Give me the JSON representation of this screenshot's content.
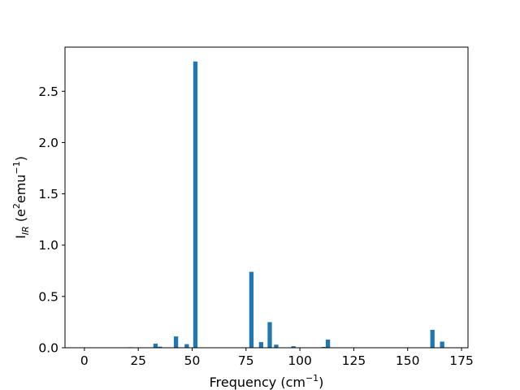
{
  "chart_data": {
    "type": "bar",
    "title": "",
    "xlabel": {
      "base": "Frequency (cm",
      "superscript": "−1",
      "suffix": ")"
    },
    "ylabel": {
      "base": "I",
      "subscript": "IR",
      "middle": " (e",
      "superscript1": "2",
      "unit": "emu",
      "superscript2": "−1",
      "suffix": ")"
    },
    "xlim": [
      -9,
      178
    ],
    "ylim": [
      0,
      2.93
    ],
    "xticks": [
      0,
      25,
      50,
      75,
      100,
      125,
      150,
      175
    ],
    "yticks": [
      0.0,
      0.5,
      1.0,
      1.5,
      2.0,
      2.5
    ],
    "xtick_labels": [
      "0",
      "25",
      "50",
      "75",
      "100",
      "125",
      "150",
      "175"
    ],
    "ytick_labels": [
      "0.0",
      "0.5",
      "1.0",
      "1.5",
      "2.0",
      "2.5"
    ],
    "grid": false,
    "bar_width": 2.0,
    "bar_color": "#1f77b4",
    "x": [
      21.5,
      33,
      35,
      42.5,
      47.5,
      51.5,
      77.5,
      82,
      86,
      89,
      97,
      111,
      113,
      161.5,
      166
    ],
    "values": [
      0.005,
      0.04,
      0.01,
      0.11,
      0.035,
      2.79,
      0.74,
      0.055,
      0.25,
      0.03,
      0.015,
      0.008,
      0.08,
      0.175,
      0.06
    ]
  }
}
